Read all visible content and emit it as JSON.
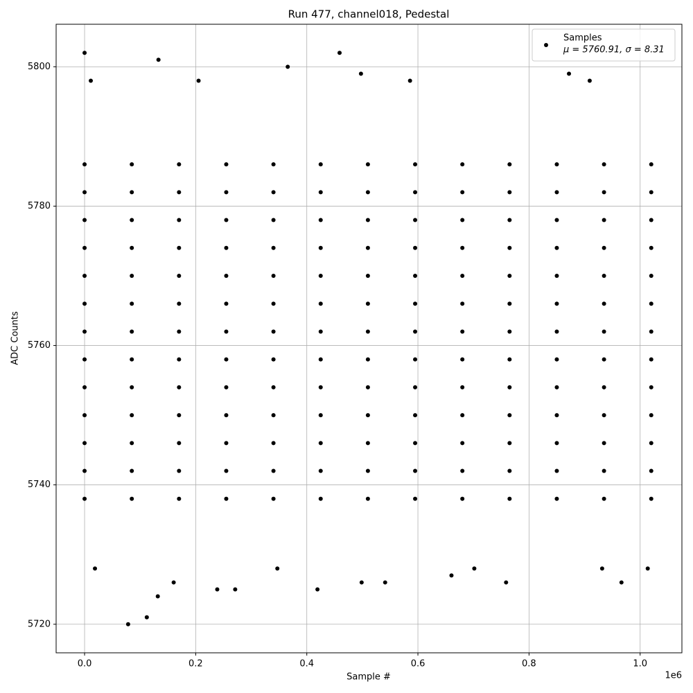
{
  "chart_data": {
    "type": "scatter",
    "title": "Run 477, channel018, Pedestal",
    "x_label": "Sample #",
    "y_label": "ADC Counts",
    "x_offset_label": "1e6",
    "xlim": [
      -51200,
      1075200
    ],
    "ylim": [
      5715.9,
      5806.1
    ],
    "xticks": [
      {
        "value": 0,
        "label": "0.0"
      },
      {
        "value": 200000,
        "label": "0.2"
      },
      {
        "value": 400000,
        "label": "0.4"
      },
      {
        "value": 600000,
        "label": "0.6"
      },
      {
        "value": 800000,
        "label": "0.8"
      },
      {
        "value": 1000000,
        "label": "1.0"
      }
    ],
    "yticks": [
      5720,
      5740,
      5760,
      5780,
      5800
    ],
    "grid": true,
    "legend_position": "upper right",
    "series": [
      {
        "name": "Samples",
        "stats": "μ = 5760.91, σ = 8.31",
        "color": "#000000",
        "x": [
          0,
          78400,
          112000,
          131800,
          133000,
          365700,
          459000,
          497500,
          871900,
          11200,
          205200,
          585800,
          909200,
          419200,
          238800,
          271100,
          498700,
          541000,
          758700,
          966400,
          160400,
          347000,
          18700,
          1013700,
          931600,
          701500,
          660400,
          0,
          85000,
          170000,
          255000,
          340000,
          425000,
          510000,
          595000,
          680000,
          765000,
          850000,
          935000,
          1020000,
          0,
          85000,
          170000,
          255000,
          340000,
          425000,
          510000,
          595000,
          680000,
          765000,
          850000,
          935000,
          1020000,
          0,
          85000,
          170000,
          255000,
          340000,
          425000,
          510000,
          595000,
          680000,
          765000,
          850000,
          935000,
          1020000,
          0,
          85000,
          170000,
          255000,
          340000,
          425000,
          510000,
          595000,
          680000,
          765000,
          850000,
          935000,
          1020000,
          0,
          85000,
          170000,
          255000,
          340000,
          425000,
          510000,
          595000,
          680000,
          765000,
          850000,
          935000,
          1020000,
          0,
          85000,
          170000,
          255000,
          340000,
          425000,
          510000,
          595000,
          680000,
          765000,
          850000,
          935000,
          1020000,
          0,
          85000,
          170000,
          255000,
          340000,
          425000,
          510000,
          595000,
          680000,
          765000,
          850000,
          935000,
          1020000,
          0,
          85000,
          170000,
          255000,
          340000,
          425000,
          510000,
          595000,
          680000,
          765000,
          850000,
          935000,
          1020000,
          0,
          85000,
          170000,
          255000,
          340000,
          425000,
          510000,
          595000,
          680000,
          765000,
          850000,
          935000,
          1020000,
          0,
          85000,
          170000,
          255000,
          340000,
          425000,
          510000,
          595000,
          680000,
          765000,
          850000,
          935000,
          1020000,
          0,
          85000,
          170000,
          255000,
          340000,
          425000,
          510000,
          595000,
          680000,
          765000,
          850000,
          935000,
          1020000,
          0,
          85000,
          170000,
          255000,
          340000,
          425000,
          510000,
          595000,
          680000,
          765000,
          850000,
          935000,
          1020000,
          0,
          85000,
          170000,
          255000,
          340000,
          425000,
          510000,
          595000,
          680000,
          765000,
          850000,
          935000,
          1020000
        ],
        "values": [
          5802,
          5720,
          5721,
          5724,
          5801,
          5800,
          5802,
          5799,
          5799,
          5798,
          5798,
          5798,
          5798,
          5725,
          5725,
          5725,
          5726,
          5726,
          5726,
          5726,
          5726,
          5728,
          5728,
          5728,
          5728,
          5728,
          5727,
          5738,
          5738,
          5738,
          5738,
          5738,
          5738,
          5738,
          5738,
          5738,
          5738,
          5738,
          5738,
          5738,
          5742,
          5742,
          5742,
          5742,
          5742,
          5742,
          5742,
          5742,
          5742,
          5742,
          5742,
          5742,
          5742,
          5746,
          5746,
          5746,
          5746,
          5746,
          5746,
          5746,
          5746,
          5746,
          5746,
          5746,
          5746,
          5746,
          5750,
          5750,
          5750,
          5750,
          5750,
          5750,
          5750,
          5750,
          5750,
          5750,
          5750,
          5750,
          5750,
          5754,
          5754,
          5754,
          5754,
          5754,
          5754,
          5754,
          5754,
          5754,
          5754,
          5754,
          5754,
          5754,
          5758,
          5758,
          5758,
          5758,
          5758,
          5758,
          5758,
          5758,
          5758,
          5758,
          5758,
          5758,
          5758,
          5762,
          5762,
          5762,
          5762,
          5762,
          5762,
          5762,
          5762,
          5762,
          5762,
          5762,
          5762,
          5762,
          5766,
          5766,
          5766,
          5766,
          5766,
          5766,
          5766,
          5766,
          5766,
          5766,
          5766,
          5766,
          5766,
          5770,
          5770,
          5770,
          5770,
          5770,
          5770,
          5770,
          5770,
          5770,
          5770,
          5770,
          5770,
          5770,
          5774,
          5774,
          5774,
          5774,
          5774,
          5774,
          5774,
          5774,
          5774,
          5774,
          5774,
          5774,
          5774,
          5778,
          5778,
          5778,
          5778,
          5778,
          5778,
          5778,
          5778,
          5778,
          5778,
          5778,
          5778,
          5778,
          5782,
          5782,
          5782,
          5782,
          5782,
          5782,
          5782,
          5782,
          5782,
          5782,
          5782,
          5782,
          5782,
          5786,
          5786,
          5786,
          5786,
          5786,
          5786,
          5786,
          5786,
          5786,
          5786,
          5786,
          5786,
          5786
        ]
      }
    ]
  }
}
